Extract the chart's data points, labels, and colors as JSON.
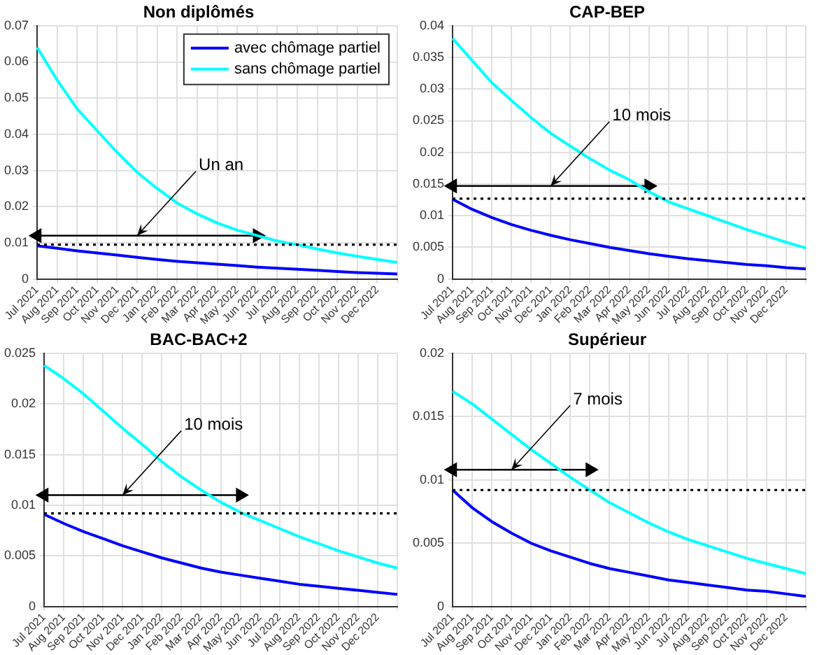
{
  "chart_data": [
    {
      "type": "line",
      "title": "Non diplômés",
      "categories": [
        "Jul 2021",
        "Aug 2021",
        "Sep 2021",
        "Oct 2021",
        "Nov 2021",
        "Dec 2021",
        "Jan 2022",
        "Feb 2022",
        "Mar 2022",
        "Apr 2022",
        "May 2022",
        "Jun 2022",
        "Jul 2022",
        "Aug 2022",
        "Sep 2022",
        "Oct 2022",
        "Nov 2022",
        "Dec 2022",
        null
      ],
      "ylim": [
        0,
        0.07
      ],
      "yticks": [
        0,
        0.01,
        0.02,
        0.03,
        0.04,
        0.05,
        0.06,
        0.07
      ],
      "grid": true,
      "legend": "top right",
      "series": [
        {
          "name": "avec chômage partiel",
          "color": "#0000ff",
          "values": [
            0.0092,
            0.0085,
            0.0078,
            0.0072,
            0.0066,
            0.006,
            0.0054,
            0.0049,
            0.0045,
            0.0041,
            0.0037,
            0.0033,
            0.003,
            0.0027,
            0.0024,
            0.0021,
            0.0018,
            0.0016,
            0.0014
          ]
        },
        {
          "name": "sans chômage partiel",
          "color": "#00ffff",
          "values": [
            0.064,
            0.055,
            0.047,
            0.041,
            0.035,
            0.0295,
            0.025,
            0.021,
            0.018,
            0.0155,
            0.0135,
            0.012,
            0.0105,
            0.0095,
            0.0083,
            0.0072,
            0.0063,
            0.0054,
            0.0046
          ]
        },
        {
          "type": "line",
          "color": "#000000",
          "marker": "triangle",
          "values": [
            0.012,
            null,
            null,
            null,
            null,
            null,
            null,
            null,
            null,
            null,
            null,
            0.012,
            null,
            null,
            null,
            null,
            null,
            null,
            null
          ]
        }
      ],
      "ref_lines": [
        {
          "axis": "y",
          "value": 0.0095,
          "color": "#000000",
          "line_style": "dotted"
        }
      ],
      "annotations": [
        {
          "text": "Un an",
          "x": "Dec 2021",
          "y": 0.012
        }
      ]
    },
    {
      "type": "line",
      "title": "CAP-BEP",
      "categories": [
        "Jul 2021",
        "Aug 2021",
        "Sep 2021",
        "Oct 2021",
        "Nov 2021",
        "Dec 2021",
        "Jan 2022",
        "Feb 2022",
        "Mar 2022",
        "Apr 2022",
        "May 2022",
        "Jun 2022",
        "Jul 2022",
        "Aug 2022",
        "Sep 2022",
        "Oct 2022",
        "Nov 2022",
        "Dec 2022",
        null
      ],
      "ylim": [
        0,
        0.04
      ],
      "yticks": [
        0,
        0.005,
        0.01,
        0.015,
        0.02,
        0.025,
        0.03,
        0.035,
        0.04
      ],
      "grid": true,
      "series": [
        {
          "color": "#0000ff",
          "values": [
            0.0126,
            0.011,
            0.0097,
            0.0086,
            0.0077,
            0.0069,
            0.0062,
            0.0056,
            0.005,
            0.0045,
            0.004,
            0.0036,
            0.0032,
            0.0029,
            0.0026,
            0.0023,
            0.0021,
            0.0018,
            0.0016
          ]
        },
        {
          "color": "#00ffff",
          "values": [
            0.038,
            0.0345,
            0.031,
            0.0282,
            0.0255,
            0.023,
            0.021,
            0.019,
            0.0172,
            0.0157,
            0.0138,
            0.0122,
            0.0111,
            0.01,
            0.0089,
            0.0078,
            0.0068,
            0.0058,
            0.0049
          ]
        },
        {
          "type": "line",
          "color": "#000000",
          "marker": "triangle",
          "values": [
            0.0147,
            null,
            null,
            null,
            null,
            null,
            null,
            null,
            null,
            null,
            0.0147,
            null,
            null,
            null,
            null,
            null,
            null,
            null,
            null
          ]
        }
      ],
      "ref_lines": [
        {
          "axis": "y",
          "value": 0.0127,
          "color": "#000000",
          "line_style": "dotted"
        }
      ],
      "annotations": [
        {
          "text": "10 mois",
          "x": "Dec 2021",
          "y": 0.0147
        }
      ]
    },
    {
      "type": "line",
      "title": "BAC-BAC+2",
      "categories": [
        "Jul 2021",
        "Aug 2021",
        "Sep 2021",
        "Oct 2021",
        "Nov 2021",
        "Dec 2021",
        "Jan 2022",
        "Feb 2022",
        "Mar 2022",
        "Apr 2022",
        "May 2022",
        "Jun 2022",
        "Jul 2022",
        "Aug 2022",
        "Sep 2022",
        "Oct 2022",
        "Nov 2022",
        "Dec 2022",
        null
      ],
      "ylim": [
        0,
        0.025
      ],
      "yticks": [
        0,
        0.005,
        0.01,
        0.015,
        0.02,
        0.025
      ],
      "grid": true,
      "series": [
        {
          "color": "#0000ff",
          "values": [
            0.0091,
            0.0082,
            0.0074,
            0.0067,
            0.006,
            0.0054,
            0.0048,
            0.0043,
            0.0038,
            0.0034,
            0.0031,
            0.0028,
            0.0025,
            0.0022,
            0.002,
            0.0018,
            0.0016,
            0.0014,
            0.0012
          ]
        },
        {
          "color": "#00ffff",
          "values": [
            0.0238,
            0.0225,
            0.021,
            0.0193,
            0.0176,
            0.016,
            0.0143,
            0.0128,
            0.0115,
            0.0103,
            0.0093,
            0.0085,
            0.0077,
            0.0069,
            0.0062,
            0.0055,
            0.0049,
            0.0043,
            0.0038
          ]
        },
        {
          "type": "line",
          "color": "#000000",
          "marker": "triangle",
          "values": [
            0.011,
            null,
            null,
            null,
            null,
            null,
            null,
            null,
            null,
            null,
            0.011,
            null,
            null,
            null,
            null,
            null,
            null,
            null,
            null
          ]
        }
      ],
      "ref_lines": [
        {
          "axis": "y",
          "value": 0.0092,
          "color": "#000000",
          "line_style": "dotted"
        }
      ],
      "annotations": [
        {
          "text": "10 mois",
          "x": "Nov 2021",
          "y": 0.011
        }
      ]
    },
    {
      "type": "line",
      "title": "Supérieur",
      "categories": [
        "Jul 2021",
        "Aug 2021",
        "Sep 2021",
        "Oct 2021",
        "Nov 2021",
        "Dec 2021",
        "Jan 2022",
        "Feb 2022",
        "Mar 2022",
        "Apr 2022",
        "May 2022",
        "Jun 2022",
        "Jul 2022",
        "Aug 2022",
        "Sep 2022",
        "Oct 2022",
        "Nov 2022",
        "Dec 2022",
        null
      ],
      "ylim": [
        0,
        0.02
      ],
      "yticks": [
        0,
        0.005,
        0.01,
        0.015,
        0.02
      ],
      "grid": true,
      "series": [
        {
          "color": "#0000ff",
          "values": [
            0.0092,
            0.0078,
            0.0067,
            0.0058,
            0.005,
            0.0044,
            0.0039,
            0.0034,
            0.003,
            0.0027,
            0.0024,
            0.0021,
            0.0019,
            0.0017,
            0.0015,
            0.0013,
            0.0012,
            0.001,
            0.0008
          ]
        },
        {
          "color": "#00ffff",
          "values": [
            0.017,
            0.016,
            0.0148,
            0.0136,
            0.0124,
            0.0113,
            0.0102,
            0.0092,
            0.0082,
            0.0074,
            0.0066,
            0.0059,
            0.0053,
            0.0048,
            0.0043,
            0.0038,
            0.0034,
            0.003,
            0.0026
          ]
        },
        {
          "type": "line",
          "color": "#000000",
          "marker": "triangle",
          "values": [
            0.0108,
            null,
            null,
            null,
            null,
            null,
            null,
            0.0108,
            null,
            null,
            null,
            null,
            null,
            null,
            null,
            null,
            null,
            null,
            null
          ]
        }
      ],
      "ref_lines": [
        {
          "axis": "y",
          "value": 0.0092,
          "color": "#000000",
          "line_style": "dotted"
        }
      ],
      "annotations": [
        {
          "text": "7 mois",
          "x": "Oct 2021",
          "y": 0.0108
        }
      ]
    }
  ]
}
